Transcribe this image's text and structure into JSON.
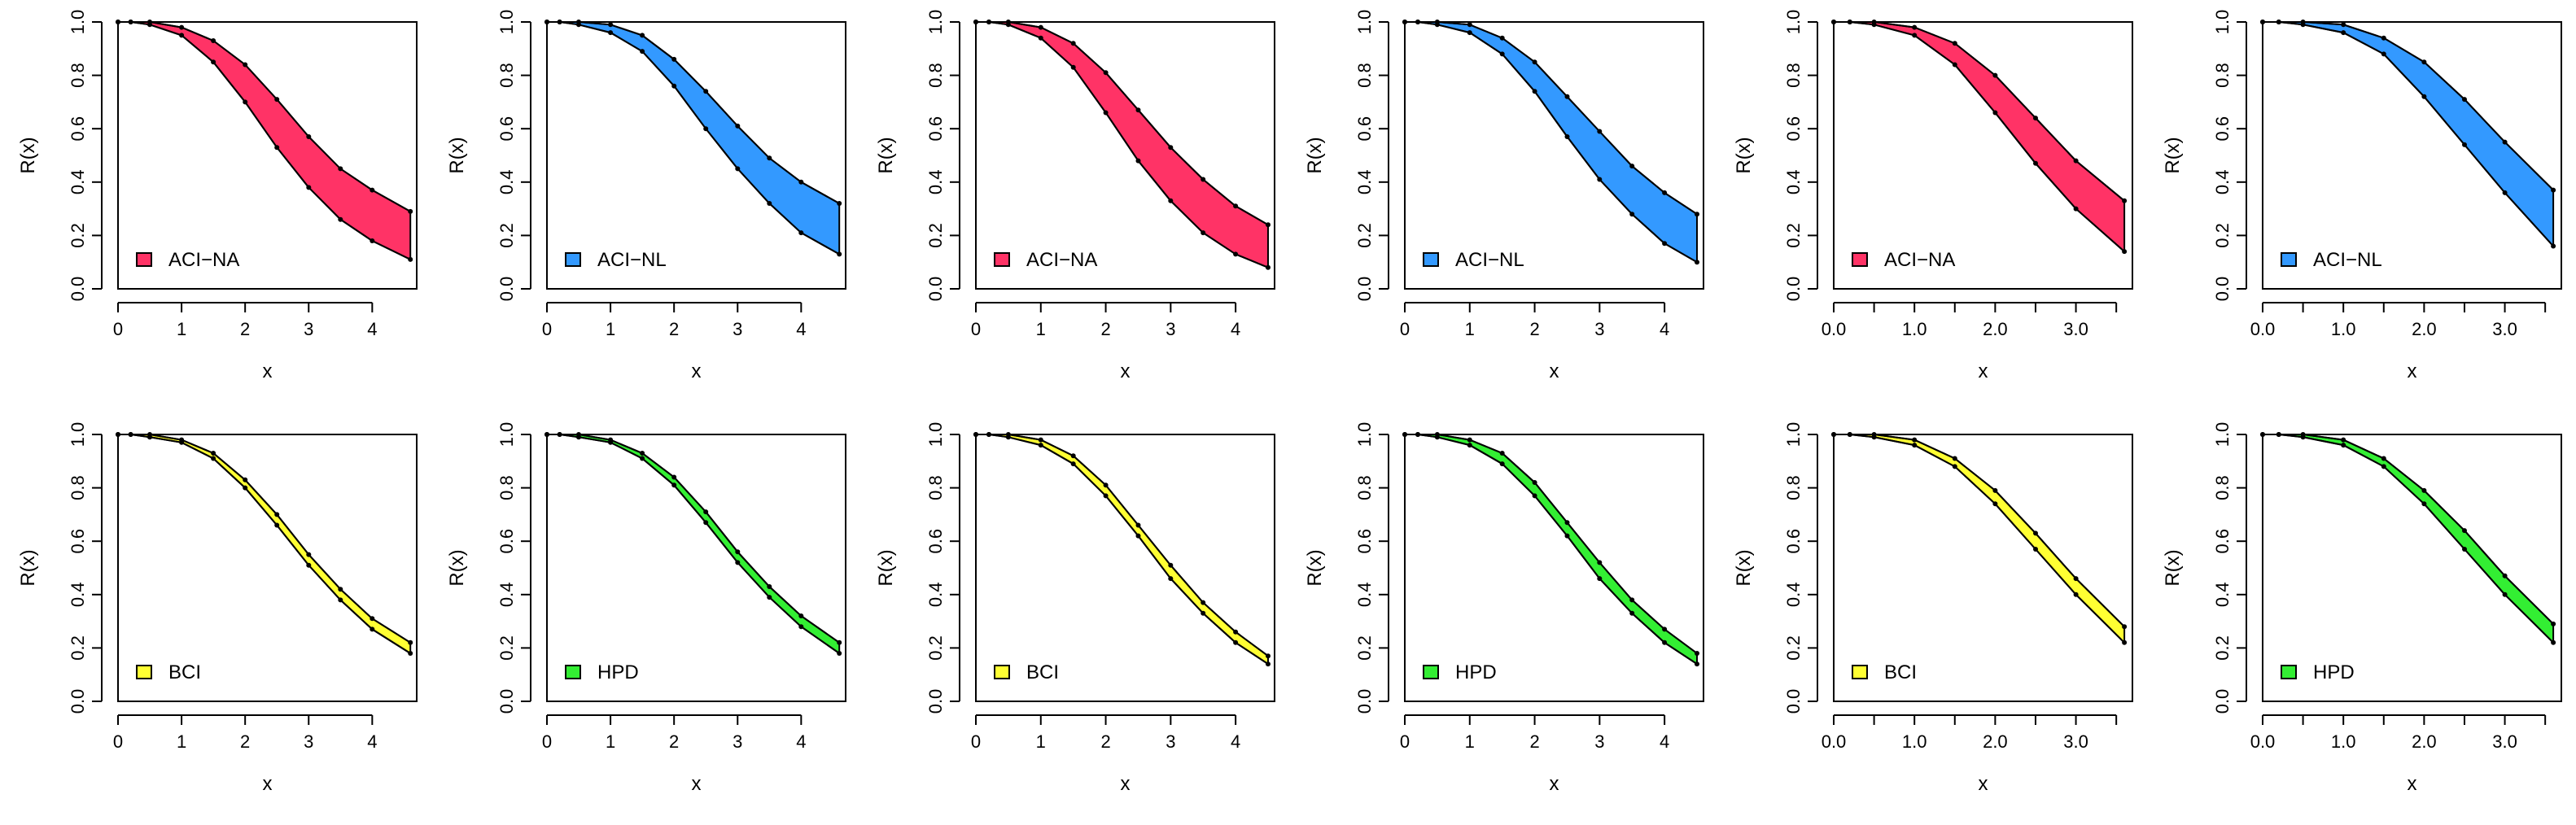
{
  "chart_data": [
    {
      "type": "area",
      "xlabel": "x",
      "ylabel": "R(x)",
      "xlim": [
        0,
        4.7
      ],
      "ylim": [
        0,
        1.0
      ],
      "xticks": [
        0,
        1,
        2,
        3,
        4
      ],
      "xtick_labels": [
        "0",
        "1",
        "2",
        "3",
        "4"
      ],
      "yticks": [
        0,
        0.2,
        0.4,
        0.6,
        0.8,
        1.0
      ],
      "ytick_labels": [
        "0.0",
        "0.2",
        "0.4",
        "0.6",
        "0.8",
        "1.0"
      ],
      "legend": {
        "label": "ACI−NA",
        "color": "#ff3366",
        "position": "bottom-left"
      },
      "series": [
        {
          "name": "lower",
          "x": [
            0,
            0.2,
            0.5,
            1,
            1.5,
            2,
            2.5,
            3,
            3.5,
            4,
            4.6
          ],
          "values": [
            1.0,
            1.0,
            0.99,
            0.95,
            0.85,
            0.7,
            0.53,
            0.38,
            0.26,
            0.18,
            0.11
          ]
        },
        {
          "name": "upper",
          "x": [
            0,
            0.2,
            0.5,
            1,
            1.5,
            2,
            2.5,
            3,
            3.5,
            4,
            4.6
          ],
          "values": [
            1.0,
            1.0,
            1.0,
            0.98,
            0.93,
            0.84,
            0.71,
            0.57,
            0.45,
            0.37,
            0.29
          ]
        }
      ]
    },
    {
      "type": "area",
      "xlabel": "x",
      "ylabel": "R(x)",
      "xlim": [
        0,
        4.7
      ],
      "ylim": [
        0,
        1.0
      ],
      "xticks": [
        0,
        1,
        2,
        3,
        4
      ],
      "xtick_labels": [
        "0",
        "1",
        "2",
        "3",
        "4"
      ],
      "yticks": [
        0,
        0.2,
        0.4,
        0.6,
        0.8,
        1.0
      ],
      "ytick_labels": [
        "0.0",
        "0.2",
        "0.4",
        "0.6",
        "0.8",
        "1.0"
      ],
      "legend": {
        "label": "ACI−NL",
        "color": "#3399ff",
        "position": "bottom-left"
      },
      "series": [
        {
          "name": "lower",
          "x": [
            0,
            0.2,
            0.5,
            1,
            1.5,
            2,
            2.5,
            3,
            3.5,
            4,
            4.6
          ],
          "values": [
            1.0,
            1.0,
            0.99,
            0.96,
            0.89,
            0.76,
            0.6,
            0.45,
            0.32,
            0.21,
            0.13
          ]
        },
        {
          "name": "upper",
          "x": [
            0,
            0.2,
            0.5,
            1,
            1.5,
            2,
            2.5,
            3,
            3.5,
            4,
            4.6
          ],
          "values": [
            1.0,
            1.0,
            1.0,
            0.99,
            0.95,
            0.86,
            0.74,
            0.61,
            0.49,
            0.4,
            0.32
          ]
        }
      ]
    },
    {
      "type": "area",
      "xlabel": "x",
      "ylabel": "R(x)",
      "xlim": [
        0,
        4.6
      ],
      "ylim": [
        0,
        1.0
      ],
      "xticks": [
        0,
        1,
        2,
        3,
        4
      ],
      "xtick_labels": [
        "0",
        "1",
        "2",
        "3",
        "4"
      ],
      "yticks": [
        0,
        0.2,
        0.4,
        0.6,
        0.8,
        1.0
      ],
      "ytick_labels": [
        "0.0",
        "0.2",
        "0.4",
        "0.6",
        "0.8",
        "1.0"
      ],
      "legend": {
        "label": "ACI−NA",
        "color": "#ff3366",
        "position": "bottom-left"
      },
      "series": [
        {
          "name": "lower",
          "x": [
            0,
            0.2,
            0.5,
            1,
            1.5,
            2,
            2.5,
            3,
            3.5,
            4,
            4.5
          ],
          "values": [
            1.0,
            1.0,
            0.99,
            0.94,
            0.83,
            0.66,
            0.48,
            0.33,
            0.21,
            0.13,
            0.08
          ]
        },
        {
          "name": "upper",
          "x": [
            0,
            0.2,
            0.5,
            1,
            1.5,
            2,
            2.5,
            3,
            3.5,
            4,
            4.5
          ],
          "values": [
            1.0,
            1.0,
            1.0,
            0.98,
            0.92,
            0.81,
            0.67,
            0.53,
            0.41,
            0.31,
            0.24
          ]
        }
      ]
    },
    {
      "type": "area",
      "xlabel": "x",
      "ylabel": "R(x)",
      "xlim": [
        0,
        4.6
      ],
      "ylim": [
        0,
        1.0
      ],
      "xticks": [
        0,
        1,
        2,
        3,
        4
      ],
      "xtick_labels": [
        "0",
        "1",
        "2",
        "3",
        "4"
      ],
      "yticks": [
        0,
        0.2,
        0.4,
        0.6,
        0.8,
        1.0
      ],
      "ytick_labels": [
        "0.0",
        "0.2",
        "0.4",
        "0.6",
        "0.8",
        "1.0"
      ],
      "legend": {
        "label": "ACI−NL",
        "color": "#3399ff",
        "position": "bottom-left"
      },
      "series": [
        {
          "name": "lower",
          "x": [
            0,
            0.2,
            0.5,
            1,
            1.5,
            2,
            2.5,
            3,
            3.5,
            4,
            4.5
          ],
          "values": [
            1.0,
            1.0,
            0.99,
            0.96,
            0.88,
            0.74,
            0.57,
            0.41,
            0.28,
            0.17,
            0.1
          ]
        },
        {
          "name": "upper",
          "x": [
            0,
            0.2,
            0.5,
            1,
            1.5,
            2,
            2.5,
            3,
            3.5,
            4,
            4.5
          ],
          "values": [
            1.0,
            1.0,
            1.0,
            0.99,
            0.94,
            0.85,
            0.72,
            0.59,
            0.46,
            0.36,
            0.28
          ]
        }
      ]
    },
    {
      "type": "area",
      "xlabel": "x",
      "ylabel": "R(x)",
      "xlim": [
        0,
        3.7
      ],
      "ylim": [
        0,
        1.0
      ],
      "xticks": [
        0,
        0.5,
        1,
        1.5,
        2,
        2.5,
        3,
        3.5
      ],
      "xtick_labels": [
        "0.0",
        "",
        "1.0",
        "",
        "2.0",
        "",
        "3.0",
        ""
      ],
      "yticks": [
        0,
        0.2,
        0.4,
        0.6,
        0.8,
        1.0
      ],
      "ytick_labels": [
        "0.0",
        "0.2",
        "0.4",
        "0.6",
        "0.8",
        "1.0"
      ],
      "legend": {
        "label": "ACI−NA",
        "color": "#ff3366",
        "position": "bottom-left"
      },
      "series": [
        {
          "name": "lower",
          "x": [
            0,
            0.2,
            0.5,
            1,
            1.5,
            2,
            2.5,
            3,
            3.6
          ],
          "values": [
            1.0,
            1.0,
            0.99,
            0.95,
            0.84,
            0.66,
            0.47,
            0.3,
            0.14
          ]
        },
        {
          "name": "upper",
          "x": [
            0,
            0.2,
            0.5,
            1,
            1.5,
            2,
            2.5,
            3,
            3.6
          ],
          "values": [
            1.0,
            1.0,
            1.0,
            0.98,
            0.92,
            0.8,
            0.64,
            0.48,
            0.33
          ]
        }
      ]
    },
    {
      "type": "area",
      "xlabel": "x",
      "ylabel": "R(x)",
      "xlim": [
        0,
        3.7
      ],
      "ylim": [
        0,
        1.0
      ],
      "xticks": [
        0,
        0.5,
        1,
        1.5,
        2,
        2.5,
        3,
        3.5
      ],
      "xtick_labels": [
        "0.0",
        "",
        "1.0",
        "",
        "2.0",
        "",
        "3.0",
        ""
      ],
      "yticks": [
        0,
        0.2,
        0.4,
        0.6,
        0.8,
        1.0
      ],
      "ytick_labels": [
        "0.0",
        "0.2",
        "0.4",
        "0.6",
        "0.8",
        "1.0"
      ],
      "legend": {
        "label": "ACI−NL",
        "color": "#3399ff",
        "position": "bottom-left"
      },
      "series": [
        {
          "name": "lower",
          "x": [
            0,
            0.2,
            0.5,
            1,
            1.5,
            2,
            2.5,
            3,
            3.6
          ],
          "values": [
            1.0,
            1.0,
            0.99,
            0.96,
            0.88,
            0.72,
            0.54,
            0.36,
            0.16
          ]
        },
        {
          "name": "upper",
          "x": [
            0,
            0.2,
            0.5,
            1,
            1.5,
            2,
            2.5,
            3,
            3.6
          ],
          "values": [
            1.0,
            1.0,
            1.0,
            0.99,
            0.94,
            0.85,
            0.71,
            0.55,
            0.37
          ]
        }
      ]
    },
    {
      "type": "area",
      "xlabel": "x",
      "ylabel": "R(x)",
      "xlim": [
        0,
        4.7
      ],
      "ylim": [
        0,
        1.0
      ],
      "xticks": [
        0,
        1,
        2,
        3,
        4
      ],
      "xtick_labels": [
        "0",
        "1",
        "2",
        "3",
        "4"
      ],
      "yticks": [
        0,
        0.2,
        0.4,
        0.6,
        0.8,
        1.0
      ],
      "ytick_labels": [
        "0.0",
        "0.2",
        "0.4",
        "0.6",
        "0.8",
        "1.0"
      ],
      "legend": {
        "label": "BCI",
        "color": "#ffff33",
        "position": "bottom-left"
      },
      "series": [
        {
          "name": "lower",
          "x": [
            0,
            0.2,
            0.5,
            1,
            1.5,
            2,
            2.5,
            3,
            3.5,
            4,
            4.6
          ],
          "values": [
            1.0,
            1.0,
            0.99,
            0.97,
            0.91,
            0.8,
            0.66,
            0.51,
            0.38,
            0.27,
            0.18
          ]
        },
        {
          "name": "upper",
          "x": [
            0,
            0.2,
            0.5,
            1,
            1.5,
            2,
            2.5,
            3,
            3.5,
            4,
            4.6
          ],
          "values": [
            1.0,
            1.0,
            1.0,
            0.98,
            0.93,
            0.83,
            0.7,
            0.55,
            0.42,
            0.31,
            0.22
          ]
        }
      ]
    },
    {
      "type": "area",
      "xlabel": "x",
      "ylabel": "R(x)",
      "xlim": [
        0,
        4.7
      ],
      "ylim": [
        0,
        1.0
      ],
      "xticks": [
        0,
        1,
        2,
        3,
        4
      ],
      "xtick_labels": [
        "0",
        "1",
        "2",
        "3",
        "4"
      ],
      "yticks": [
        0,
        0.2,
        0.4,
        0.6,
        0.8,
        1.0
      ],
      "ytick_labels": [
        "0.0",
        "0.2",
        "0.4",
        "0.6",
        "0.8",
        "1.0"
      ],
      "legend": {
        "label": "HPD",
        "color": "#33ee33",
        "position": "bottom-left"
      },
      "series": [
        {
          "name": "lower",
          "x": [
            0,
            0.2,
            0.5,
            1,
            1.5,
            2,
            2.5,
            3,
            3.5,
            4,
            4.6
          ],
          "values": [
            1.0,
            1.0,
            0.99,
            0.97,
            0.91,
            0.81,
            0.67,
            0.52,
            0.39,
            0.28,
            0.18
          ]
        },
        {
          "name": "upper",
          "x": [
            0,
            0.2,
            0.5,
            1,
            1.5,
            2,
            2.5,
            3,
            3.5,
            4,
            4.6
          ],
          "values": [
            1.0,
            1.0,
            1.0,
            0.98,
            0.93,
            0.84,
            0.71,
            0.56,
            0.43,
            0.32,
            0.22
          ]
        }
      ]
    },
    {
      "type": "area",
      "xlabel": "x",
      "ylabel": "R(x)",
      "xlim": [
        0,
        4.6
      ],
      "ylim": [
        0,
        1.0
      ],
      "xticks": [
        0,
        1,
        2,
        3,
        4
      ],
      "xtick_labels": [
        "0",
        "1",
        "2",
        "3",
        "4"
      ],
      "yticks": [
        0,
        0.2,
        0.4,
        0.6,
        0.8,
        1.0
      ],
      "ytick_labels": [
        "0.0",
        "0.2",
        "0.4",
        "0.6",
        "0.8",
        "1.0"
      ],
      "legend": {
        "label": "BCI",
        "color": "#ffff33",
        "position": "bottom-left"
      },
      "series": [
        {
          "name": "lower",
          "x": [
            0,
            0.2,
            0.5,
            1,
            1.5,
            2,
            2.5,
            3,
            3.5,
            4,
            4.5
          ],
          "values": [
            1.0,
            1.0,
            0.99,
            0.96,
            0.89,
            0.77,
            0.62,
            0.46,
            0.33,
            0.22,
            0.14
          ]
        },
        {
          "name": "upper",
          "x": [
            0,
            0.2,
            0.5,
            1,
            1.5,
            2,
            2.5,
            3,
            3.5,
            4,
            4.5
          ],
          "values": [
            1.0,
            1.0,
            1.0,
            0.98,
            0.92,
            0.81,
            0.66,
            0.51,
            0.37,
            0.26,
            0.17
          ]
        }
      ]
    },
    {
      "type": "area",
      "xlabel": "x",
      "ylabel": "R(x)",
      "xlim": [
        0,
        4.6
      ],
      "ylim": [
        0,
        1.0
      ],
      "xticks": [
        0,
        1,
        2,
        3,
        4
      ],
      "xtick_labels": [
        "0",
        "1",
        "2",
        "3",
        "4"
      ],
      "yticks": [
        0,
        0.2,
        0.4,
        0.6,
        0.8,
        1.0
      ],
      "ytick_labels": [
        "0.0",
        "0.2",
        "0.4",
        "0.6",
        "0.8",
        "1.0"
      ],
      "legend": {
        "label": "HPD",
        "color": "#33ee33",
        "position": "bottom-left"
      },
      "series": [
        {
          "name": "lower",
          "x": [
            0,
            0.2,
            0.5,
            1,
            1.5,
            2,
            2.5,
            3,
            3.5,
            4,
            4.5
          ],
          "values": [
            1.0,
            1.0,
            0.99,
            0.96,
            0.89,
            0.77,
            0.62,
            0.46,
            0.33,
            0.22,
            0.14
          ]
        },
        {
          "name": "upper",
          "x": [
            0,
            0.2,
            0.5,
            1,
            1.5,
            2,
            2.5,
            3,
            3.5,
            4,
            4.5
          ],
          "values": [
            1.0,
            1.0,
            1.0,
            0.98,
            0.93,
            0.82,
            0.67,
            0.52,
            0.38,
            0.27,
            0.18
          ]
        }
      ]
    },
    {
      "type": "area",
      "xlabel": "x",
      "ylabel": "R(x)",
      "xlim": [
        0,
        3.7
      ],
      "ylim": [
        0,
        1.0
      ],
      "xticks": [
        0,
        0.5,
        1,
        1.5,
        2,
        2.5,
        3,
        3.5
      ],
      "xtick_labels": [
        "0.0",
        "",
        "1.0",
        "",
        "2.0",
        "",
        "3.0",
        ""
      ],
      "yticks": [
        0,
        0.2,
        0.4,
        0.6,
        0.8,
        1.0
      ],
      "ytick_labels": [
        "0.0",
        "0.2",
        "0.4",
        "0.6",
        "0.8",
        "1.0"
      ],
      "legend": {
        "label": "BCI",
        "color": "#ffff33",
        "position": "bottom-left"
      },
      "series": [
        {
          "name": "lower",
          "x": [
            0,
            0.2,
            0.5,
            1,
            1.5,
            2,
            2.5,
            3,
            3.6
          ],
          "values": [
            1.0,
            1.0,
            0.99,
            0.96,
            0.88,
            0.74,
            0.57,
            0.4,
            0.22
          ]
        },
        {
          "name": "upper",
          "x": [
            0,
            0.2,
            0.5,
            1,
            1.5,
            2,
            2.5,
            3,
            3.6
          ],
          "values": [
            1.0,
            1.0,
            1.0,
            0.98,
            0.91,
            0.79,
            0.63,
            0.46,
            0.28
          ]
        }
      ]
    },
    {
      "type": "area",
      "xlabel": "x",
      "ylabel": "R(x)",
      "xlim": [
        0,
        3.7
      ],
      "ylim": [
        0,
        1.0
      ],
      "xticks": [
        0,
        0.5,
        1,
        1.5,
        2,
        2.5,
        3,
        3.5
      ],
      "xtick_labels": [
        "0.0",
        "",
        "1.0",
        "",
        "2.0",
        "",
        "3.0",
        ""
      ],
      "yticks": [
        0,
        0.2,
        0.4,
        0.6,
        0.8,
        1.0
      ],
      "ytick_labels": [
        "0.0",
        "0.2",
        "0.4",
        "0.6",
        "0.8",
        "1.0"
      ],
      "legend": {
        "label": "HPD",
        "color": "#33ee33",
        "position": "bottom-left"
      },
      "series": [
        {
          "name": "lower",
          "x": [
            0,
            0.2,
            0.5,
            1,
            1.5,
            2,
            2.5,
            3,
            3.6
          ],
          "values": [
            1.0,
            1.0,
            0.99,
            0.96,
            0.88,
            0.74,
            0.57,
            0.4,
            0.22
          ]
        },
        {
          "name": "upper",
          "x": [
            0,
            0.2,
            0.5,
            1,
            1.5,
            2,
            2.5,
            3,
            3.6
          ],
          "values": [
            1.0,
            1.0,
            1.0,
            0.98,
            0.91,
            0.79,
            0.64,
            0.47,
            0.29
          ]
        }
      ]
    }
  ]
}
